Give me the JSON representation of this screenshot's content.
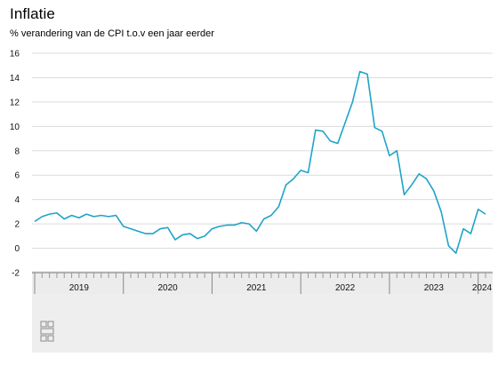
{
  "header": {
    "title": "Inflatie",
    "subtitle": "% verandering van de CPI t.o.v een jaar eerder"
  },
  "colors": {
    "line": "#1fa3c9",
    "grid": "#dcdcdc",
    "axis_band": "#e9e9e9",
    "footer": "#eeeeee"
  },
  "footer": {
    "logo_icon": "cbs-logo-icon"
  },
  "chart_data": {
    "type": "line",
    "title": "Inflatie",
    "subtitle": "% verandering van de CPI t.o.v een jaar eerder",
    "ylim": [
      -2,
      16
    ],
    "yticks": [
      -2,
      0,
      2,
      4,
      6,
      8,
      10,
      12,
      14,
      16
    ],
    "x_start": "2019-01",
    "x_end": "2024-03",
    "year_labels": [
      "2019",
      "2020",
      "2021",
      "2022",
      "2023",
      "2024"
    ],
    "grid": true,
    "series": [
      {
        "months": [
          "2019-01",
          "2019-02",
          "2019-03",
          "2019-04",
          "2019-05",
          "2019-06",
          "2019-07",
          "2019-08",
          "2019-09",
          "2019-10",
          "2019-11",
          "2019-12",
          "2020-01",
          "2020-02",
          "2020-03",
          "2020-04",
          "2020-05",
          "2020-06",
          "2020-07",
          "2020-08",
          "2020-09",
          "2020-10",
          "2020-11",
          "2020-12",
          "2021-01",
          "2021-02",
          "2021-03",
          "2021-04",
          "2021-05",
          "2021-06",
          "2021-07",
          "2021-08",
          "2021-09",
          "2021-10",
          "2021-11",
          "2021-12",
          "2022-01",
          "2022-02",
          "2022-03",
          "2022-04",
          "2022-05",
          "2022-06",
          "2022-07",
          "2022-08",
          "2022-09",
          "2022-10",
          "2022-11",
          "2022-12",
          "2023-01",
          "2023-02",
          "2023-03",
          "2023-04",
          "2023-05",
          "2023-06",
          "2023-07",
          "2023-08",
          "2023-09",
          "2023-10",
          "2023-11",
          "2023-12",
          "2024-01",
          "2024-02"
        ],
        "values": [
          2.2,
          2.6,
          2.8,
          2.9,
          2.4,
          2.7,
          2.5,
          2.8,
          2.6,
          2.7,
          2.6,
          2.7,
          1.8,
          1.6,
          1.4,
          1.2,
          1.2,
          1.6,
          1.7,
          0.7,
          1.1,
          1.2,
          0.8,
          1.0,
          1.6,
          1.8,
          1.9,
          1.9,
          2.1,
          2.0,
          1.4,
          2.4,
          2.7,
          3.4,
          5.2,
          5.7,
          6.4,
          6.2,
          9.7,
          9.6,
          8.8,
          8.6,
          10.3,
          12.0,
          14.5,
          14.3,
          9.9,
          9.6,
          7.6,
          8.0,
          4.4,
          5.2,
          6.1,
          5.7,
          4.7,
          3.0,
          0.2,
          -0.4,
          1.6,
          1.2,
          3.2,
          2.8
        ]
      }
    ]
  }
}
